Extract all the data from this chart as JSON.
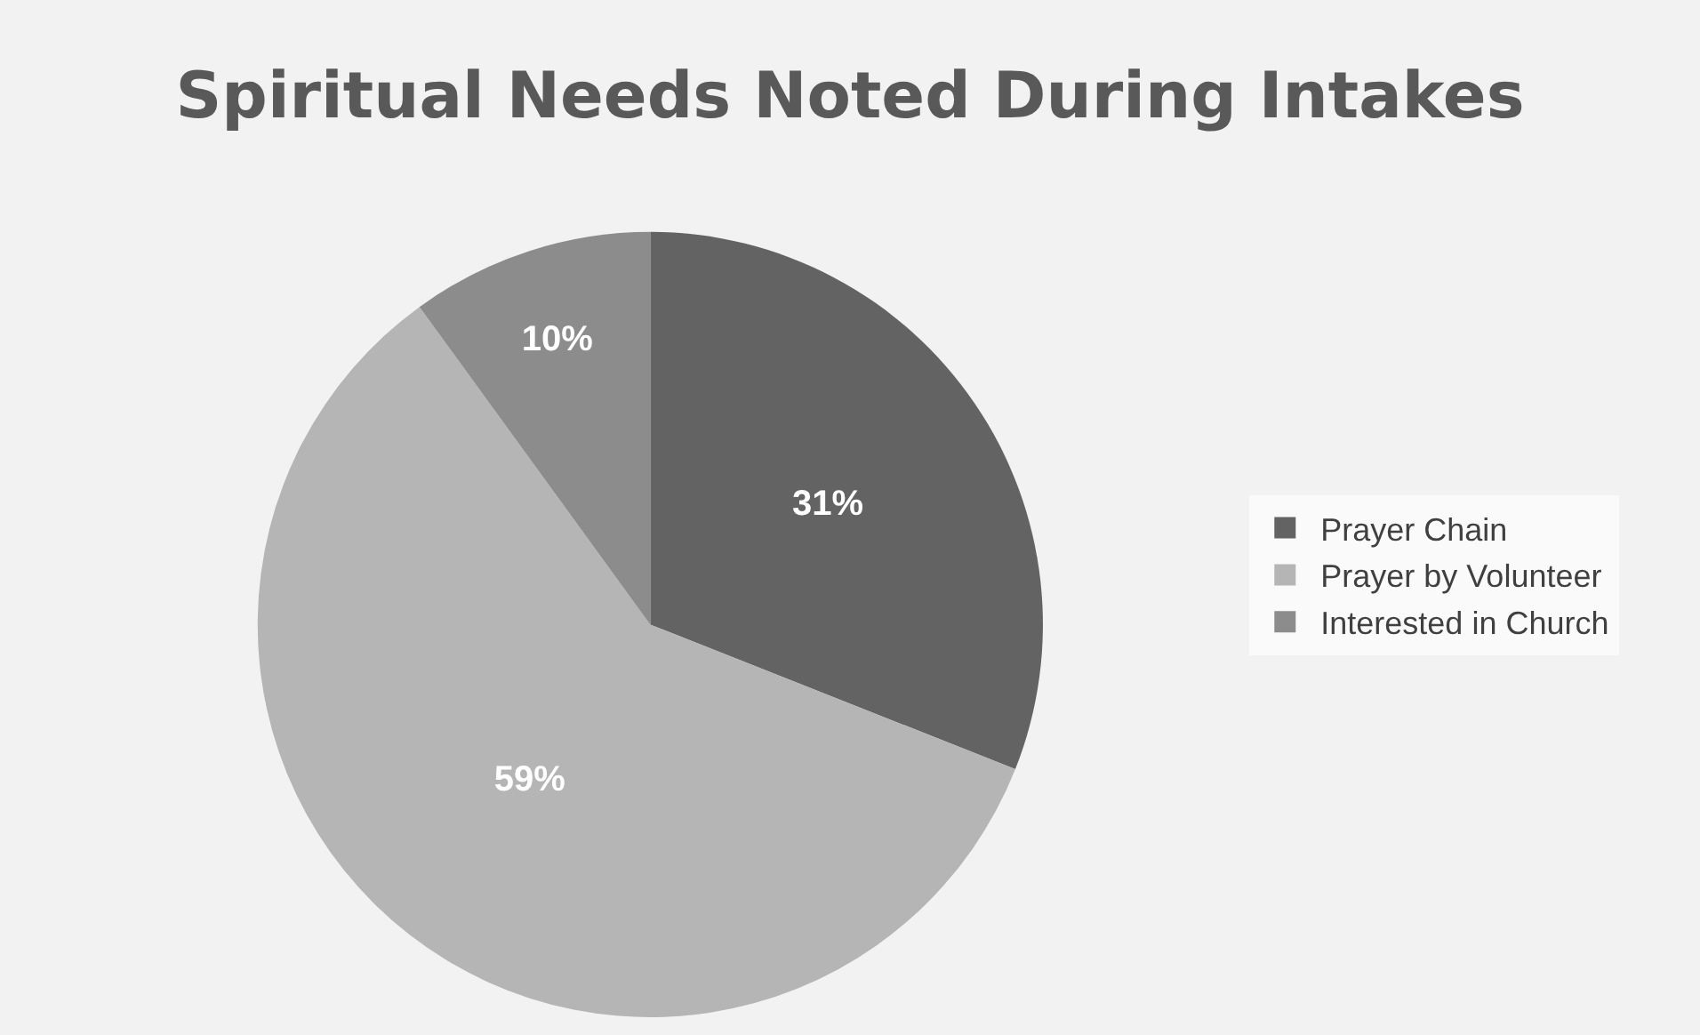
{
  "chart_data": {
    "type": "pie",
    "title": "Spiritual Needs Noted During Intakes",
    "categories": [
      "Prayer Chain",
      "Prayer by Volunteer",
      "Interested in Church"
    ],
    "values": [
      31,
      59,
      10
    ],
    "colors": [
      "#636363",
      "#b5b5b5",
      "#8c8c8c"
    ],
    "value_labels": [
      "31%",
      "59%",
      "10%"
    ],
    "legend": "right"
  }
}
